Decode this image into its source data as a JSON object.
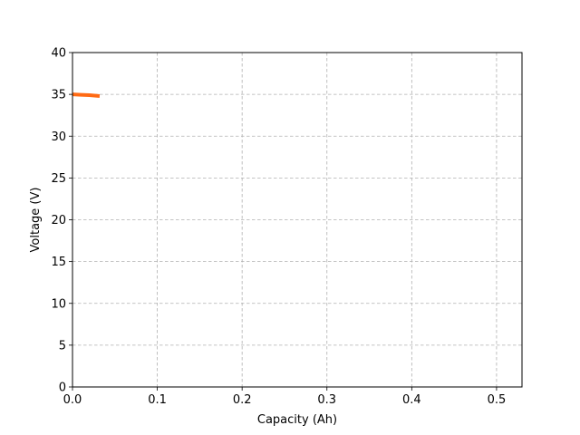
{
  "chart_data": {
    "type": "line",
    "xlabel": "Capacity (Ah)",
    "ylabel": "Voltage (V)",
    "xlim": [
      0,
      0.53
    ],
    "ylim": [
      0,
      40
    ],
    "x_ticks": [
      "0.0",
      "0.1",
      "0.2",
      "0.3",
      "0.4",
      "0.5"
    ],
    "y_ticks": [
      "0",
      "5",
      "10",
      "15",
      "20",
      "25",
      "30",
      "35",
      "40"
    ],
    "grid": true,
    "grid_style": "dashed",
    "series": [
      {
        "color": "#ff6a14",
        "points": [
          {
            "x": 0.0,
            "y": 35.0
          },
          {
            "x": 0.01,
            "y": 34.95
          },
          {
            "x": 0.02,
            "y": 34.9
          },
          {
            "x": 0.032,
            "y": 34.8
          }
        ]
      }
    ]
  }
}
